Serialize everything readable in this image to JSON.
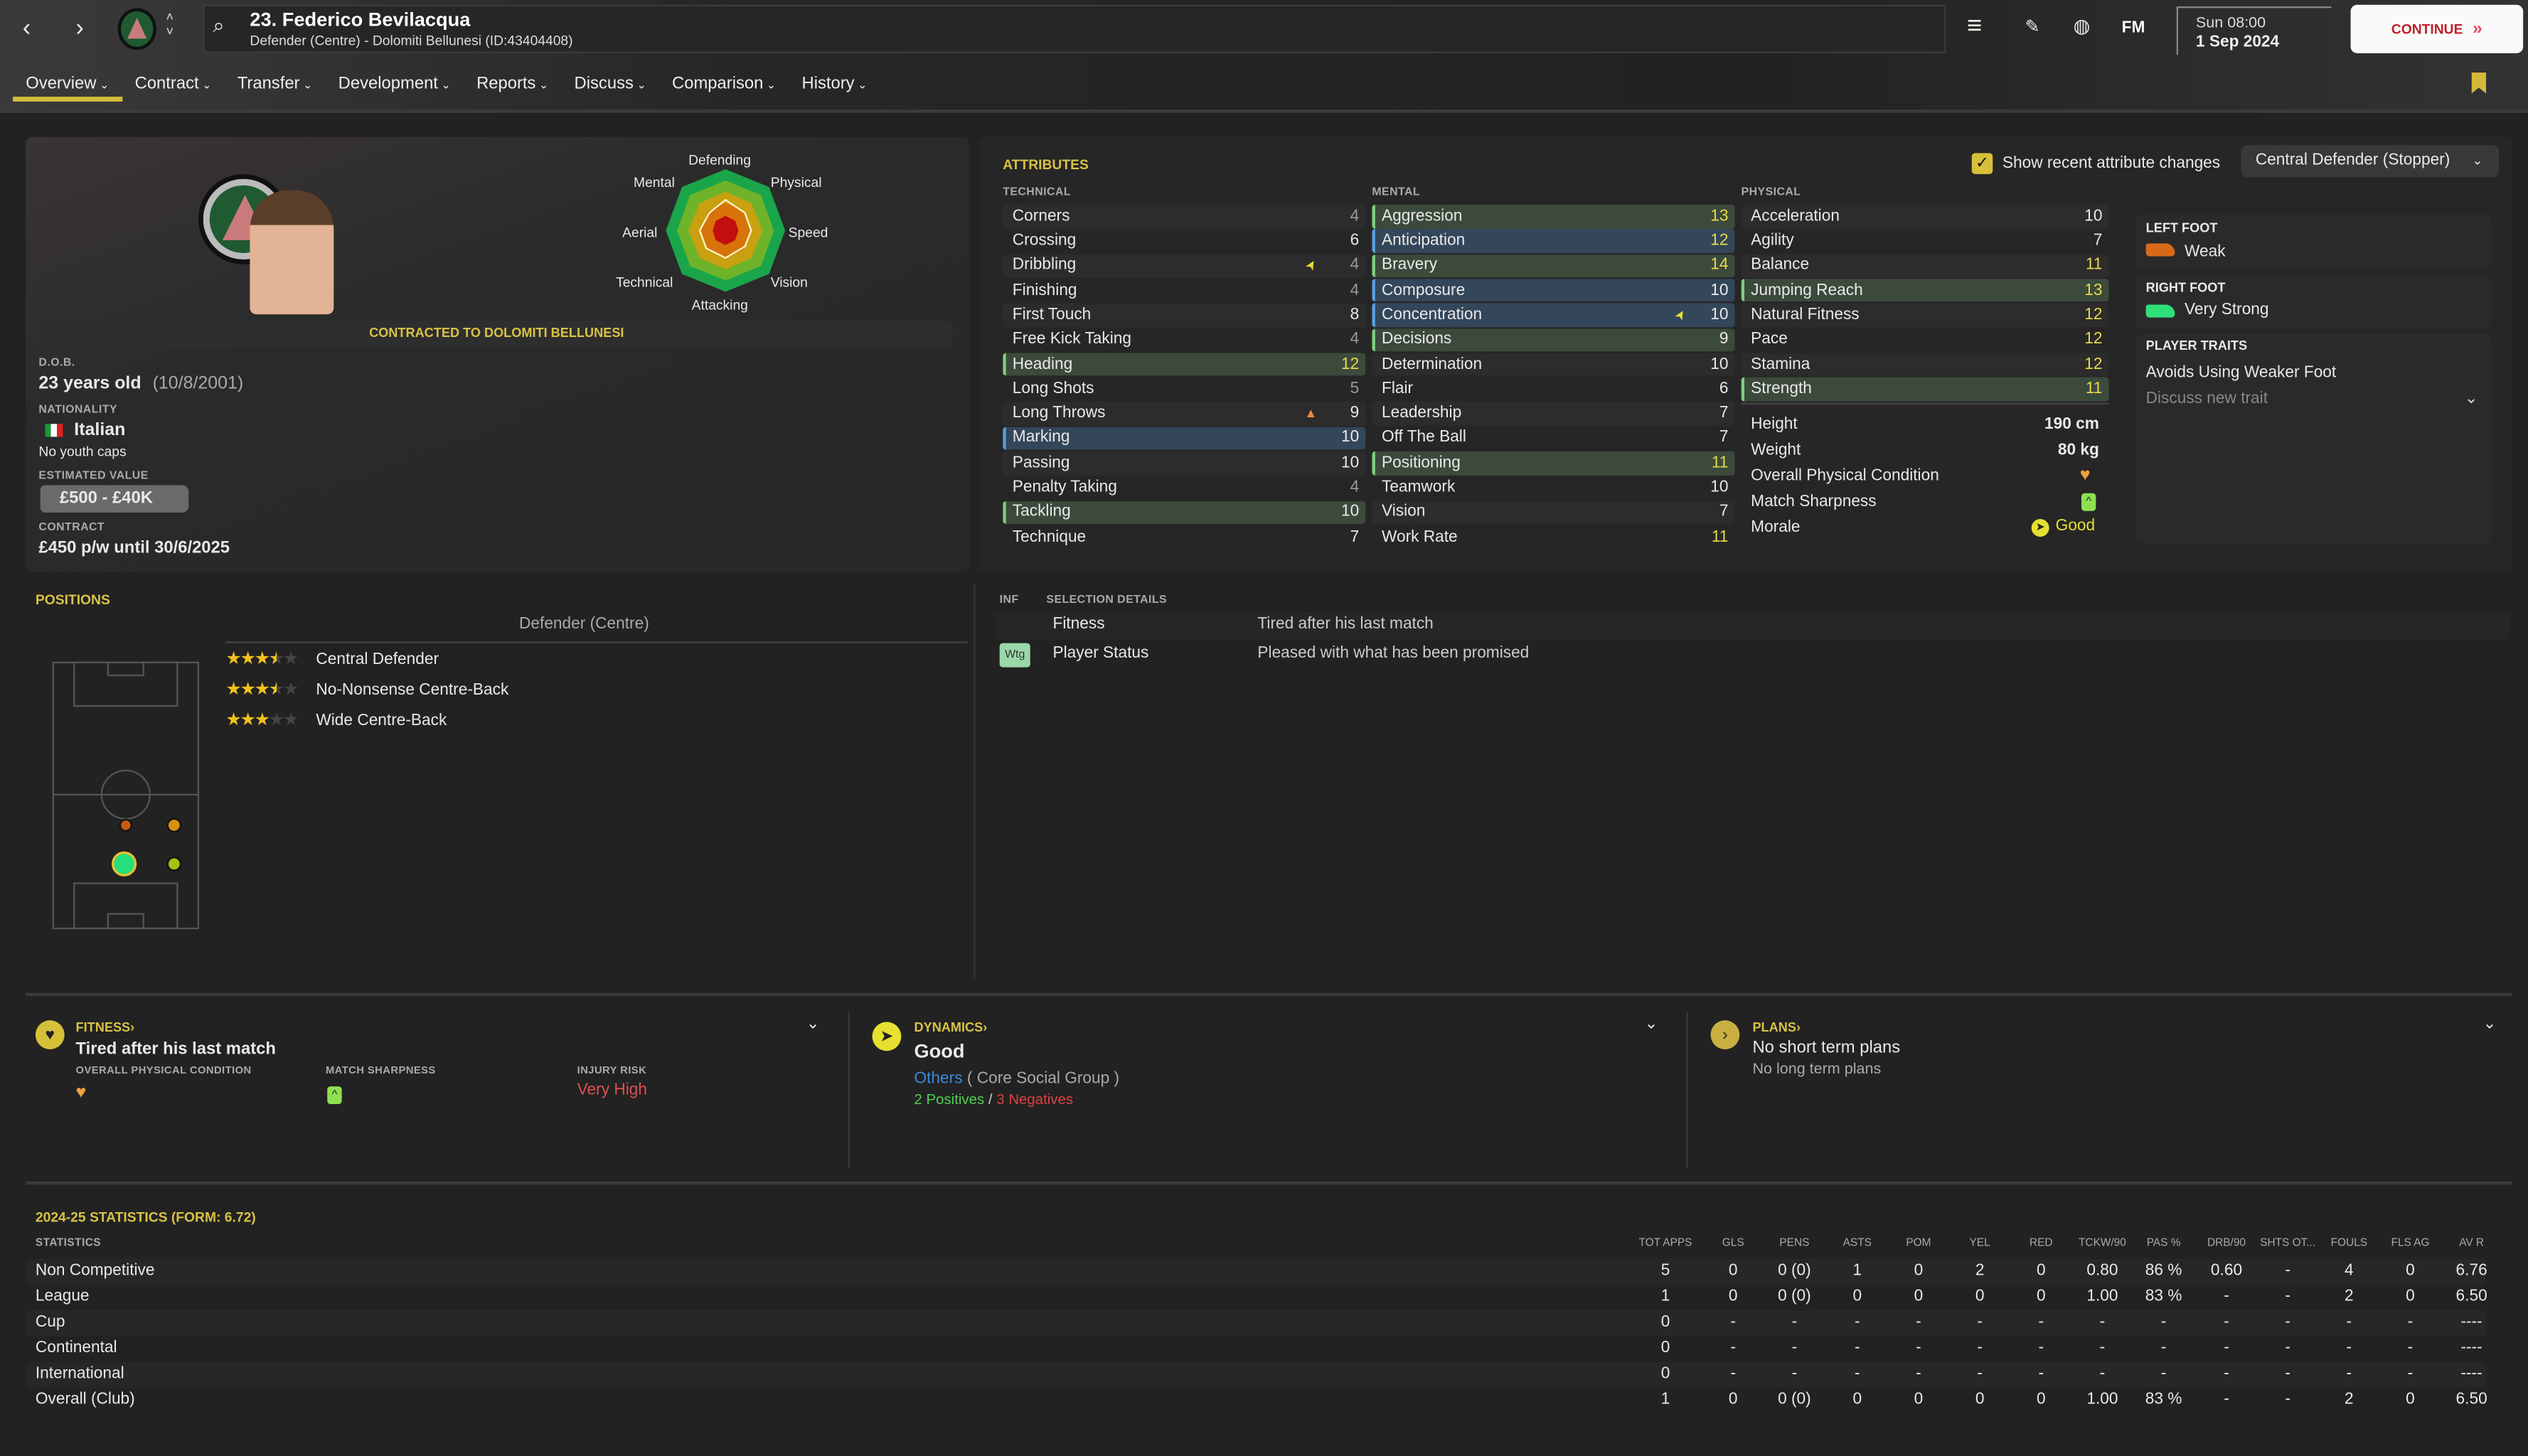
{
  "header": {
    "title": "23. Federico Bevilacqua",
    "subtitle": "Defender (Centre) - Dolomiti Bellunesi (ID:43404408)",
    "time": "Sun 08:00",
    "date": "1 Sep 2024",
    "fm_label": "FM",
    "continue_label": "CONTINUE"
  },
  "tabs": [
    {
      "label": "Overview",
      "active": true
    },
    {
      "label": "Contract"
    },
    {
      "label": "Transfer"
    },
    {
      "label": "Development"
    },
    {
      "label": "Reports"
    },
    {
      "label": "Discuss"
    },
    {
      "label": "Comparison"
    },
    {
      "label": "History"
    }
  ],
  "profile": {
    "radar_labels": {
      "top": "Defending",
      "top_left": "Mental",
      "top_right": "Physical",
      "left": "Aerial",
      "right": "Speed",
      "bottom_left": "Technical",
      "bottom_right": "Vision",
      "bottom": "Attacking"
    },
    "contract_banner": "CONTRACTED TO DOLOMITI BELLUNESI",
    "dob_label": "D.O.B.",
    "age": "23 years old",
    "dob": "(10/8/2001)",
    "nationality_label": "NATIONALITY",
    "nationality": "Italian",
    "youth_caps": "No youth caps",
    "value_label": "ESTIMATED VALUE",
    "value": "£500 - £40K",
    "contract_label": "CONTRACT",
    "contract": "£450 p/w until 30/6/2025"
  },
  "attributes": {
    "title": "ATTRIBUTES",
    "show_changes_label": "Show recent attribute changes",
    "show_changes_checked": true,
    "role_select": "Central Defender (Stopper)",
    "colors": {
      "low": "#9a9a9a",
      "mid": "#e8e8e8",
      "high": "#e6d94a",
      "key": "#7fcf7f",
      "preferred": "#5aa0e0",
      "arrow_up": "#e6e030",
      "arrow_down": "#f08a3c"
    },
    "technical_label": "TECHNICAL",
    "mental_label": "MENTAL",
    "physical_label": "PHYSICAL",
    "technical": [
      {
        "name": "Corners",
        "value": 4
      },
      {
        "name": "Crossing",
        "value": 6
      },
      {
        "name": "Dribbling",
        "value": 4,
        "change": "up"
      },
      {
        "name": "Finishing",
        "value": 4
      },
      {
        "name": "First Touch",
        "value": 8
      },
      {
        "name": "Free Kick Taking",
        "value": 4
      },
      {
        "name": "Heading",
        "value": 12,
        "highlight": "key"
      },
      {
        "name": "Long Shots",
        "value": 5
      },
      {
        "name": "Long Throws",
        "value": 9,
        "change": "down"
      },
      {
        "name": "Marking",
        "value": 10,
        "highlight": "pref"
      },
      {
        "name": "Passing",
        "value": 10
      },
      {
        "name": "Penalty Taking",
        "value": 4
      },
      {
        "name": "Tackling",
        "value": 10,
        "highlight": "key"
      },
      {
        "name": "Technique",
        "value": 7
      }
    ],
    "mental": [
      {
        "name": "Aggression",
        "value": 13,
        "highlight": "key"
      },
      {
        "name": "Anticipation",
        "value": 12,
        "highlight": "pref"
      },
      {
        "name": "Bravery",
        "value": 14,
        "highlight": "key"
      },
      {
        "name": "Composure",
        "value": 10,
        "highlight": "pref"
      },
      {
        "name": "Concentration",
        "value": 10,
        "highlight": "pref",
        "change": "up"
      },
      {
        "name": "Decisions",
        "value": 9,
        "highlight": "key"
      },
      {
        "name": "Determination",
        "value": 10
      },
      {
        "name": "Flair",
        "value": 6
      },
      {
        "name": "Leadership",
        "value": 7
      },
      {
        "name": "Off The Ball",
        "value": 7
      },
      {
        "name": "Positioning",
        "value": 11,
        "highlight": "key"
      },
      {
        "name": "Teamwork",
        "value": 10
      },
      {
        "name": "Vision",
        "value": 7
      },
      {
        "name": "Work Rate",
        "value": 11
      }
    ],
    "physical": [
      {
        "name": "Acceleration",
        "value": 10
      },
      {
        "name": "Agility",
        "value": 7
      },
      {
        "name": "Balance",
        "value": 11
      },
      {
        "name": "Jumping Reach",
        "value": 13,
        "highlight": "key"
      },
      {
        "name": "Natural Fitness",
        "value": 12
      },
      {
        "name": "Pace",
        "value": 12
      },
      {
        "name": "Stamina",
        "value": 12
      },
      {
        "name": "Strength",
        "value": 11,
        "highlight": "key"
      }
    ],
    "body": {
      "height_label": "Height",
      "height": "190 cm",
      "weight_label": "Weight",
      "weight": "80 kg",
      "condition_label": "Overall Physical Condition",
      "sharpness_label": "Match Sharpness",
      "morale_label": "Morale",
      "morale": "Good"
    }
  },
  "side": {
    "left_foot_label": "LEFT FOOT",
    "left_foot": "Weak",
    "right_foot_label": "RIGHT FOOT",
    "right_foot": "Very Strong",
    "traits_label": "PLAYER TRAITS",
    "trait": "Avoids Using Weaker Foot",
    "discuss_trait": "Discuss new trait"
  },
  "positions": {
    "title": "POSITIONS",
    "main_position": "Defender (Centre)",
    "roles": [
      {
        "name": "Central Defender",
        "stars": 3.5
      },
      {
        "name": "No-Nonsense Centre-Back",
        "stars": 3.5
      },
      {
        "name": "Wide Centre-Back",
        "stars": 3
      }
    ]
  },
  "selection": {
    "inf_label": "INF",
    "header": "SELECTION DETAILS",
    "rows": [
      {
        "badge": "",
        "label": "Fitness",
        "value": "Tired after his last match"
      },
      {
        "badge": "Wtg",
        "label": "Player Status",
        "value": "Pleased with what has been promised"
      }
    ]
  },
  "fitness": {
    "title": "FITNESS",
    "status": "Tired after his last match",
    "condition_label": "OVERALL PHYSICAL CONDITION",
    "sharpness_label": "MATCH SHARPNESS",
    "injury_label": "INJURY RISK",
    "injury": "Very High"
  },
  "dynamics": {
    "title": "DYNAMICS",
    "status": "Good",
    "group": "Others",
    "group_suffix": "( Core Social Group )",
    "positives": "2 Positives",
    "slash": "/",
    "negatives": "3 Negatives"
  },
  "plans": {
    "title": "PLANS",
    "short": "No short term plans",
    "long": "No long term plans"
  },
  "stats": {
    "title": "2024-25 STATISTICS (FORM: 6.72)",
    "row_header": "STATISTICS",
    "columns": [
      "TOT APPS",
      "GLS",
      "PENS",
      "ASTS",
      "POM",
      "YEL",
      "RED",
      "TCKW/90",
      "PAS %",
      "DRB/90",
      "SHTS OT...",
      "FOULS",
      "FLS AG",
      "AV R"
    ],
    "rows": [
      {
        "label": "Non Competitive",
        "values": [
          "5",
          "0",
          "0 (0)",
          "1",
          "0",
          "2",
          "0",
          "0.80",
          "86 %",
          "0.60",
          "-",
          "4",
          "0",
          "6.76"
        ]
      },
      {
        "label": "League",
        "values": [
          "1",
          "0",
          "0 (0)",
          "0",
          "0",
          "0",
          "0",
          "1.00",
          "83 %",
          "-",
          "-",
          "2",
          "0",
          "6.50"
        ]
      },
      {
        "label": "Cup",
        "values": [
          "0",
          "-",
          "-",
          "-",
          "-",
          "-",
          "-",
          "-",
          "-",
          "-",
          "-",
          "-",
          "-",
          "----"
        ]
      },
      {
        "label": "Continental",
        "values": [
          "0",
          "-",
          "-",
          "-",
          "-",
          "-",
          "-",
          "-",
          "-",
          "-",
          "-",
          "-",
          "-",
          "----"
        ]
      },
      {
        "label": "International",
        "values": [
          "0",
          "-",
          "-",
          "-",
          "-",
          "-",
          "-",
          "-",
          "-",
          "-",
          "-",
          "-",
          "-",
          "----"
        ]
      },
      {
        "label": "Overall (Club)",
        "values": [
          "1",
          "0",
          "0 (0)",
          "0",
          "0",
          "0",
          "0",
          "1.00",
          "83 %",
          "-",
          "-",
          "2",
          "0",
          "6.50"
        ]
      }
    ]
  }
}
